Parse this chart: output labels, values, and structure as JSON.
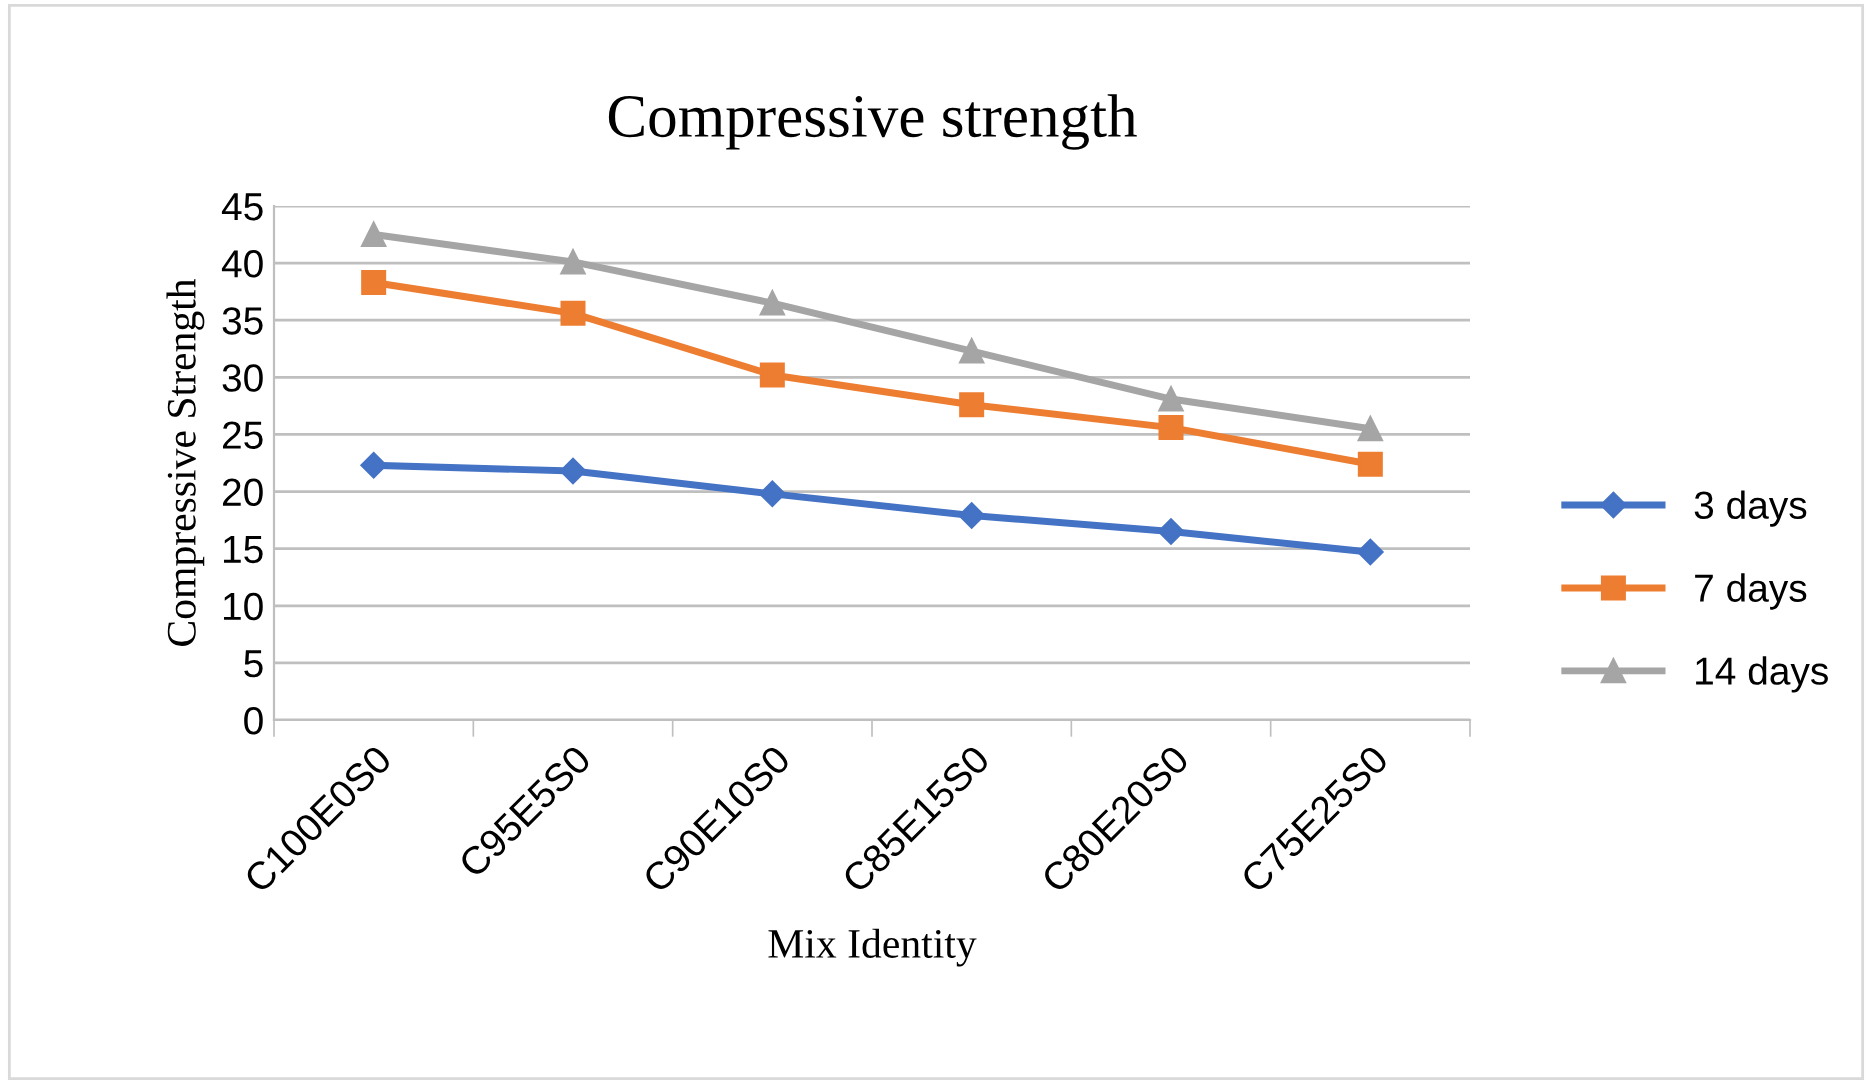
{
  "chart_data": {
    "type": "line",
    "title": "Compressive strength",
    "xlabel": "Mix Identity",
    "ylabel": "Compressive Strength",
    "categories": [
      "C100E0S0",
      "C95E5S0",
      "C90E10S0",
      "C85E15S0",
      "C80E20S0",
      "C75E25S0"
    ],
    "series": [
      {
        "name": "3 days",
        "color": "#4472c4",
        "marker": "diamond",
        "values": [
          22.3,
          21.8,
          19.8,
          17.9,
          16.5,
          14.7
        ]
      },
      {
        "name": "7 days",
        "color": "#ed7d31",
        "marker": "square",
        "values": [
          38.3,
          35.6,
          30.2,
          27.6,
          25.6,
          22.4
        ]
      },
      {
        "name": "14 days",
        "color": "#a5a5a5",
        "marker": "triangle",
        "values": [
          42.5,
          40.1,
          36.5,
          32.3,
          28.1,
          25.5
        ]
      }
    ],
    "ylim": [
      0,
      45
    ],
    "yticks": [
      0,
      5,
      10,
      15,
      20,
      25,
      30,
      35,
      40,
      45
    ],
    "grid": "y",
    "legend": "right",
    "line_style": "solid"
  }
}
